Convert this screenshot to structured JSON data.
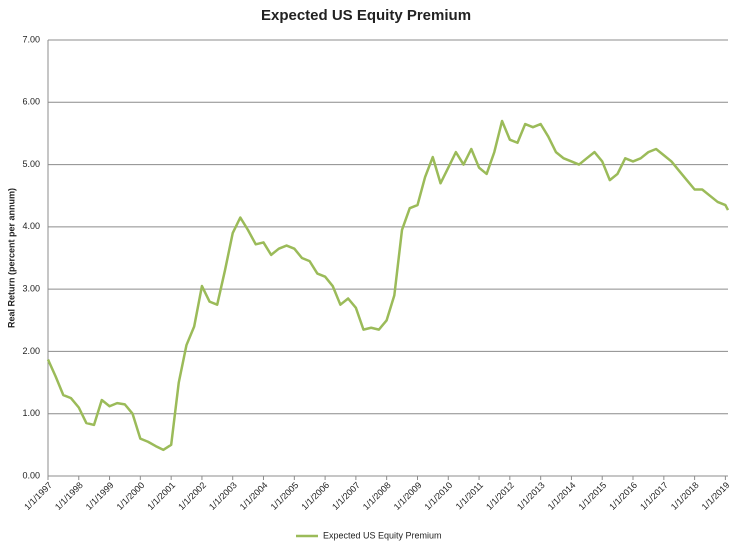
{
  "chart_data": {
    "type": "line",
    "title": "Expected US Equity Premium",
    "y_label": "Real Return (percent per annum)",
    "x": [
      "1/1/1997",
      "4/1/1997",
      "7/1/1997",
      "10/1/1997",
      "1/1/1998",
      "4/1/1998",
      "7/1/1998",
      "10/1/1998",
      "1/1/1999",
      "4/1/1999",
      "7/1/1999",
      "10/1/1999",
      "1/1/2000",
      "4/1/2000",
      "7/1/2000",
      "10/1/2000",
      "1/1/2001",
      "4/1/2001",
      "7/1/2001",
      "10/1/2001",
      "1/1/2002",
      "4/1/2002",
      "7/1/2002",
      "10/1/2002",
      "1/1/2003",
      "4/1/2003",
      "7/1/2003",
      "10/1/2003",
      "1/1/2004",
      "4/1/2004",
      "7/1/2004",
      "10/1/2004",
      "1/1/2005",
      "4/1/2005",
      "7/1/2005",
      "10/1/2005",
      "1/1/2006",
      "4/1/2006",
      "7/1/2006",
      "10/1/2006",
      "1/1/2007",
      "4/1/2007",
      "7/1/2007",
      "10/1/2007",
      "1/1/2008",
      "4/1/2008",
      "7/1/2008",
      "10/1/2008",
      "1/1/2009",
      "4/1/2009",
      "7/1/2009",
      "10/1/2009",
      "1/1/2010",
      "4/1/2010",
      "7/1/2010",
      "10/1/2010",
      "1/1/2011",
      "4/1/2011",
      "7/1/2011",
      "10/1/2011",
      "1/1/2012",
      "4/1/2012",
      "7/1/2012",
      "10/1/2012",
      "1/1/2013",
      "4/1/2013",
      "7/1/2013",
      "10/1/2013",
      "1/1/2014",
      "4/1/2014",
      "7/1/2014",
      "10/1/2014",
      "1/1/2015",
      "4/1/2015",
      "7/1/2015",
      "10/1/2015",
      "1/1/2016",
      "4/1/2016",
      "7/1/2016",
      "10/1/2016",
      "1/1/2017",
      "4/1/2017",
      "7/1/2017",
      "10/1/2017",
      "1/1/2018",
      "4/1/2018",
      "7/1/2018",
      "10/1/2018",
      "1/1/2019",
      "2/1/2019"
    ],
    "series": [
      {
        "name": "Expected US Equity Premium",
        "color": "#9bbb59",
        "values": [
          1.87,
          1.6,
          1.3,
          1.25,
          1.1,
          0.85,
          0.82,
          1.22,
          1.12,
          1.17,
          1.15,
          1.0,
          0.6,
          0.55,
          0.48,
          0.42,
          0.5,
          1.5,
          2.1,
          2.4,
          3.05,
          2.8,
          2.75,
          3.3,
          3.9,
          4.15,
          3.95,
          3.72,
          3.75,
          3.55,
          3.65,
          3.7,
          3.65,
          3.5,
          3.45,
          3.25,
          3.2,
          3.05,
          2.75,
          2.85,
          2.7,
          2.35,
          2.38,
          2.35,
          2.5,
          2.9,
          3.95,
          4.3,
          4.35,
          4.8,
          5.12,
          4.7,
          4.95,
          5.2,
          5.0,
          5.25,
          4.95,
          4.85,
          5.2,
          5.7,
          5.4,
          5.35,
          5.65,
          5.6,
          5.65,
          5.45,
          5.2,
          5.1,
          5.05,
          5.0,
          5.1,
          5.2,
          5.05,
          4.75,
          4.85,
          5.1,
          5.05,
          5.1,
          5.2,
          5.25,
          5.15,
          5.05,
          4.9,
          4.75,
          4.6,
          4.6,
          4.5,
          4.4,
          4.35,
          4.27
        ]
      }
    ],
    "xlim": [
      "1/1/1997",
      "2/1/2019"
    ],
    "xticks": [
      "1/1/1997",
      "1/1/1998",
      "1/1/1999",
      "1/1/2000",
      "1/1/2001",
      "1/1/2002",
      "1/1/2003",
      "1/1/2004",
      "1/1/2005",
      "1/1/2006",
      "1/1/2007",
      "1/1/2008",
      "1/1/2009",
      "1/1/2010",
      "1/1/2011",
      "1/1/2012",
      "1/1/2013",
      "1/1/2014",
      "1/1/2015",
      "1/1/2016",
      "1/1/2017",
      "1/1/2018",
      "1/1/2019"
    ],
    "ylim": [
      0,
      7
    ],
    "yticks": [
      {
        "value": 0,
        "label": "0.00"
      },
      {
        "value": 1,
        "label": "1.00"
      },
      {
        "value": 2,
        "label": "2.00"
      },
      {
        "value": 3,
        "label": "3.00"
      },
      {
        "value": 4,
        "label": "4.00"
      },
      {
        "value": 5,
        "label": "5.00"
      },
      {
        "value": 6,
        "label": "6.00"
      },
      {
        "value": 7,
        "label": "7.00"
      }
    ],
    "grid": true,
    "legend": "bottom"
  }
}
